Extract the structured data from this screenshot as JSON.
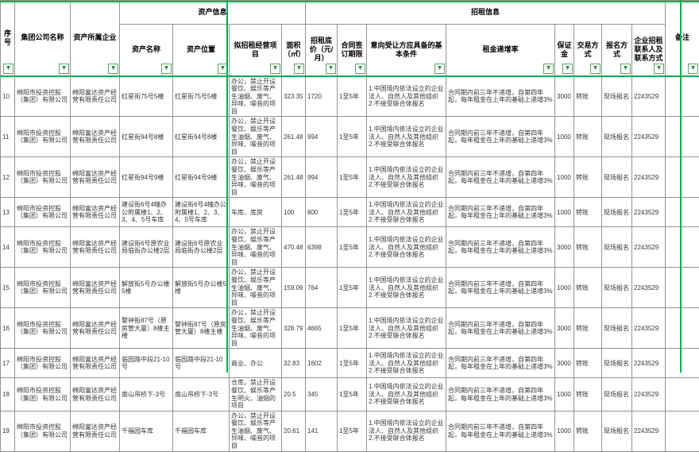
{
  "accent_green": "#00b050",
  "header": {
    "serial": "序号",
    "group_company": "集团公司名称",
    "owner_company": "资产所属企业",
    "asset_info_group": "资产信息",
    "rental_info_group": "招租信息",
    "asset_name": "资产名称",
    "asset_location": "资产位置",
    "planned_use": "拟招租经营项目",
    "area": "面积（㎡）",
    "base_price": "招租底价（元/月）",
    "contract_term": "合同签订期限",
    "conditions": "意向受让方应具备的基本条件",
    "rent_increase": "租金递增率",
    "deposit": "保证金",
    "trade_method": "交易方式",
    "signup_method": "报名方式",
    "contact": "企业招租联系人及联系方式",
    "remark": "备注"
  },
  "filter_arrow": "▼",
  "rows": [
    {
      "cells": [
        "10",
        "绵阳市投资控股（集团）有限公司",
        "绵阳富达资产经营有限责任公司",
        "红星街75号5楼",
        "红星街75号5楼",
        "办公，禁止开设餐饮、娱乐等产生油烟、废气、异味、噪音的项目",
        "323.35",
        "1720",
        "1至5年",
        "1.中国境内依法设立的企业法人、自然人及其他组织\n2.不接受联合体报名",
        "合同期内前三年不递增，自第四年起，每年租金在上年的基础上递增3%",
        "3000",
        "转账",
        "现场报名",
        "2243529",
        ""
      ]
    },
    {
      "cells": [
        "11",
        "绵阳市投资控股（集团）有限公司",
        "绵阳富达资产经营有限责任公司",
        "红星街94号8楼",
        "红星街94号8楼",
        "办公，禁止开设餐饮、娱乐等产生油烟、废气、异味、噪音的项目",
        "261.48",
        "994",
        "1至5年",
        "1.中国境内依法设立的企业法人、自然人及其他组织\n2.不接受联合体报名",
        "合同期内前三年不递增，自第四年起，每年租金在上年的基础上递增3%",
        "1000",
        "转账",
        "现场报名",
        "2243529",
        ""
      ]
    },
    {
      "cells": [
        "12",
        "绵阳市投资控股（集团）有限公司",
        "绵阳富达资产经营有限责任公司",
        "红星街94号9楼",
        "红星街94号9楼",
        "办公，禁止开设餐饮、娱乐等产生油烟、废气、异味、噪音的项目",
        "261.48",
        "994",
        "1至5年",
        "1.中国境内依法设立的企业法人、自然人及其他组织\n2.不接受联合体报名",
        "合同期内前三年不递增，自第四年起，每年租金在上年的基础上递增3%",
        "1000",
        "转账",
        "现场报名",
        "2243529",
        ""
      ]
    },
    {
      "cells": [
        "13",
        "绵阳市投资控股（集团）有限公司",
        "绵阳富达资产经营有限责任公司",
        "建设街6号4幢办公附属楼1、2、3、4、5号车库",
        "建设街6号4幢办公附属楼1、2、3、4、5号车库",
        "车库、库房",
        "100",
        "800",
        "1至5年",
        "1.中国境内依法设立的企业法人、自然人及其他组织\n2.不接受联合体报名",
        "合同期内前三年不递增，自第四年起，每年租金在上年的基础上递增3%",
        "1000",
        "转账",
        "现场报名",
        "2243529",
        ""
      ]
    },
    {
      "cells": [
        "14",
        "绵阳市投资控股（集团）有限公司",
        "绵阳富达资产经营有限责任公司",
        "建设街6号原农业局临街办公楼2层",
        "建设街6号原农业局临街办公楼2层",
        "办公，禁止开设餐饮、娱乐等产生油烟、废气、异味、噪音的项目",
        "470.48",
        "6398",
        "1至5年",
        "1.中国境内依法设立的企业法人、自然人及其他组织\n2.不接受联合体报名",
        "合同期内前三年不递增，自第四年起，每年租金在上年的基础上递增3%",
        "3000",
        "转账",
        "现场报名",
        "2243529",
        ""
      ]
    },
    {
      "cells": [
        "15",
        "绵阳市投资控股（集团）有限公司",
        "绵阳富达资产经营有限责任公司",
        "解放街5号办公楼5楼",
        "解放街5号办公楼5楼",
        "办公，禁止开设餐饮、娱乐等产生油烟、废气、异味、噪音的项目",
        "159.09",
        "764",
        "1至5年",
        "1.中国境内依法设立的企业法人、自然人及其他组织\n2.不接受联合体报名",
        "合同期内前三年不递增，自第四年起，每年租金在上年的基础上递增3%",
        "1000",
        "转账",
        "现场报名",
        "2243529",
        ""
      ]
    },
    {
      "cells": [
        "16",
        "绵阳市投资控股（集团）有限公司",
        "绵阳富达资产经营有限责任公司",
        "警钟街87号（原房管大厦）8楼主楼",
        "警钟街87号（原房管大厦）8楼主楼",
        "办公，禁止开设餐饮、娱乐等产生油烟、废气、异味、噪音的项目",
        "328.79",
        "4665",
        "1至5年",
        "1.中国境内依法设立的企业法人、自然人及其他组织\n2.不接受联合体报名",
        "合同期内前三年不递增，自第四年起，每年租金在上年的基础上递增3%",
        "3000",
        "转账",
        "现场报名",
        "2243529",
        ""
      ]
    },
    {
      "cells": [
        "17",
        "绵阳市投资控股（集团）有限公司",
        "绵阳富达资产经营有限责任公司",
        "临园路中段21-10号",
        "临园路中段21-10号",
        "商业、办公",
        "32.83",
        "1602",
        "1至5年",
        "1.中国境内依法设立的企业法人、自然人及其他组织\n2.不接受联合体报名",
        "合同期内前三年不递增，自第四年起，每年租金在上年的基础上递增3%",
        "3000",
        "转账",
        "现场报名",
        "2243529",
        ""
      ]
    },
    {
      "cells": [
        "18",
        "绵阳市投资控股（集团）有限公司",
        "绵阳富达资产经营有限责任公司",
        "南山吊桥下-3号",
        "南山吊桥下-3号",
        "仓库，禁止开设餐饮、娱乐等产生明火、油烟的项目",
        "20.5",
        "345",
        "1至5年",
        "1.中国境内依法设立的企业法人、自然人及其他组织\n2.不接受联合体报名",
        "合同期内前三年不递增，自第四年起，每年租金在上年的基础上递增3%",
        "1000",
        "转账",
        "现场报名",
        "2243529",
        ""
      ]
    },
    {
      "cells": [
        "19",
        "绵阳市投资控股（集团）有限公司",
        "绵阳富达资产经营有限责任公司",
        "千福园车库",
        "千福园车库",
        "办公，禁止开设餐饮、娱乐等产生油烟、废气、异味、噪音的项目",
        "20.61",
        "141",
        "1至5年",
        "1.中国境内依法设立的企业法人、自然人及其他组织\n2.不接受联合体报名",
        "合同期内前三年不递增，自第四年起，每年租金在上年的基础上递增3%",
        "1000",
        "转账",
        "现场报名",
        "2243529",
        ""
      ]
    }
  ]
}
